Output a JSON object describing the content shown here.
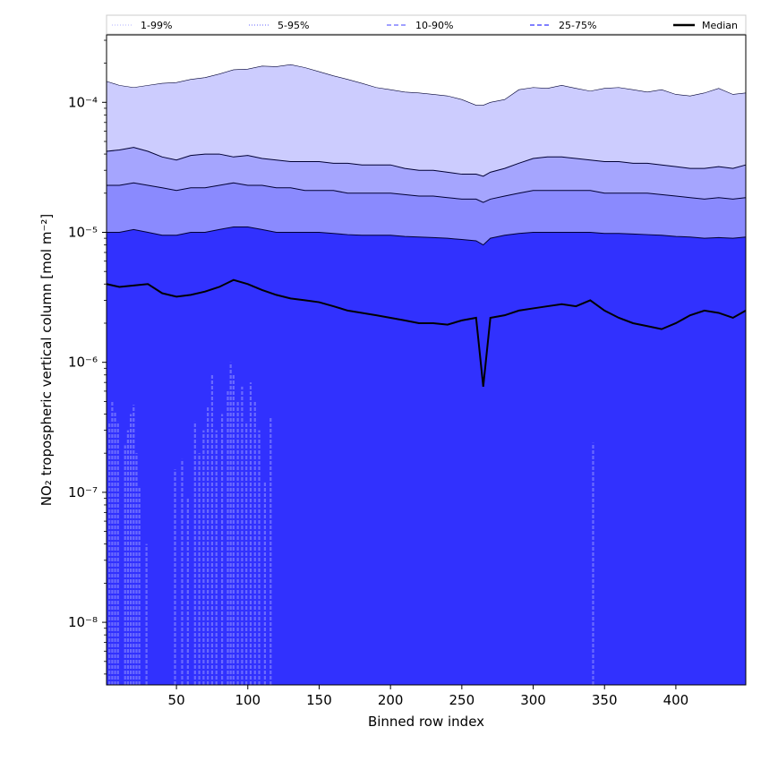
{
  "chart_data": {
    "type": "area",
    "title": "",
    "xlabel": "Binned row index",
    "ylabel": "NO₂ tropospheric vertical column [mol m⁻²]",
    "yscale": "log",
    "xlim": [
      1,
      449
    ],
    "ylim": [
      3.3e-09,
      0.00033
    ],
    "x_ticks": [
      50,
      100,
      150,
      200,
      250,
      300,
      350,
      400
    ],
    "y_ticks": [
      {
        "value": 1e-08,
        "label": "10⁻⁸"
      },
      {
        "value": 1e-07,
        "label": "10⁻⁷"
      },
      {
        "value": 1e-06,
        "label": "10⁻⁶"
      },
      {
        "value": 1e-05,
        "label": "10⁻⁵"
      },
      {
        "value": 0.0001,
        "label": "10⁻⁴"
      }
    ],
    "grid": false,
    "legend_position": "top",
    "legend": [
      {
        "label": "1-99%",
        "style": "dotted",
        "color": "#ccccff"
      },
      {
        "label": "5-95%",
        "style": "dotted",
        "color": "#9999ff"
      },
      {
        "label": "10-90%",
        "style": "dashed",
        "color": "#8080ff"
      },
      {
        "label": "25-75%",
        "style": "dashed",
        "color": "#5555ff"
      },
      {
        "label": "Median",
        "style": "solid",
        "color": "#000000"
      }
    ],
    "x": [
      1,
      10,
      20,
      30,
      40,
      50,
      60,
      70,
      80,
      90,
      100,
      110,
      120,
      130,
      140,
      150,
      160,
      170,
      180,
      190,
      200,
      210,
      220,
      230,
      240,
      250,
      260,
      265,
      270,
      280,
      290,
      300,
      310,
      320,
      330,
      340,
      350,
      360,
      370,
      380,
      390,
      400,
      410,
      420,
      430,
      440,
      449
    ],
    "series": [
      {
        "name": "1-99%",
        "role": "upper",
        "color": "#ccccff",
        "values": [
          0.000145,
          0.000135,
          0.00013,
          0.000135,
          0.00014,
          0.000142,
          0.00015,
          0.000155,
          0.000165,
          0.000178,
          0.00018,
          0.00019,
          0.000188,
          0.000195,
          0.000185,
          0.000172,
          0.00016,
          0.00015,
          0.00014,
          0.00013,
          0.000125,
          0.00012,
          0.000118,
          0.000115,
          0.000112,
          0.000105,
          9.5e-05,
          9.5e-05,
          0.0001,
          0.000105,
          0.000125,
          0.00013,
          0.000128,
          0.000135,
          0.000128,
          0.000122,
          0.000128,
          0.00013,
          0.000125,
          0.00012,
          0.000125,
          0.000115,
          0.000112,
          0.000118,
          0.000128,
          0.000115,
          0.000118
        ]
      },
      {
        "name": "5-95%",
        "role": "upper",
        "color": "#9999ff",
        "values": [
          4.2e-05,
          4.3e-05,
          4.5e-05,
          4.2e-05,
          3.8e-05,
          3.6e-05,
          3.9e-05,
          4e-05,
          4e-05,
          3.8e-05,
          3.9e-05,
          3.7e-05,
          3.6e-05,
          3.5e-05,
          3.5e-05,
          3.5e-05,
          3.4e-05,
          3.4e-05,
          3.3e-05,
          3.3e-05,
          3.3e-05,
          3.1e-05,
          3e-05,
          3e-05,
          2.9e-05,
          2.8e-05,
          2.8e-05,
          2.7e-05,
          2.9e-05,
          3.1e-05,
          3.4e-05,
          3.7e-05,
          3.8e-05,
          3.8e-05,
          3.7e-05,
          3.6e-05,
          3.5e-05,
          3.5e-05,
          3.4e-05,
          3.4e-05,
          3.3e-05,
          3.2e-05,
          3.1e-05,
          3.1e-05,
          3.2e-05,
          3.1e-05,
          3.3e-05
        ]
      },
      {
        "name": "10-90%",
        "role": "upper",
        "color": "#8080ff",
        "values": [
          2.3e-05,
          2.3e-05,
          2.4e-05,
          2.3e-05,
          2.2e-05,
          2.1e-05,
          2.2e-05,
          2.2e-05,
          2.3e-05,
          2.4e-05,
          2.3e-05,
          2.3e-05,
          2.2e-05,
          2.2e-05,
          2.1e-05,
          2.1e-05,
          2.1e-05,
          2e-05,
          2e-05,
          2e-05,
          2e-05,
          1.95e-05,
          1.9e-05,
          1.9e-05,
          1.85e-05,
          1.8e-05,
          1.8e-05,
          1.7e-05,
          1.8e-05,
          1.9e-05,
          2e-05,
          2.1e-05,
          2.1e-05,
          2.1e-05,
          2.1e-05,
          2.1e-05,
          2e-05,
          2e-05,
          2e-05,
          2e-05,
          1.95e-05,
          1.9e-05,
          1.85e-05,
          1.8e-05,
          1.85e-05,
          1.8e-05,
          1.85e-05
        ]
      },
      {
        "name": "25-75%",
        "role": "upper",
        "color": "#5555ff",
        "values": [
          1e-05,
          1e-05,
          1.05e-05,
          1e-05,
          9.5e-06,
          9.5e-06,
          1e-05,
          1e-05,
          1.05e-05,
          1.1e-05,
          1.1e-05,
          1.05e-05,
          1e-05,
          1e-05,
          1e-05,
          1e-05,
          9.8e-06,
          9.6e-06,
          9.5e-06,
          9.5e-06,
          9.5e-06,
          9.3e-06,
          9.2e-06,
          9.1e-06,
          9e-06,
          8.8e-06,
          8.6e-06,
          8e-06,
          9e-06,
          9.5e-06,
          9.8e-06,
          1e-05,
          1e-05,
          1e-05,
          1e-05,
          1e-05,
          9.8e-06,
          9.8e-06,
          9.7e-06,
          9.6e-06,
          9.5e-06,
          9.3e-06,
          9.2e-06,
          9e-06,
          9.1e-06,
          9e-06,
          9.2e-06
        ]
      },
      {
        "name": "Median",
        "role": "line",
        "color": "#000000",
        "values": [
          4e-06,
          3.8e-06,
          3.9e-06,
          4e-06,
          3.4e-06,
          3.2e-06,
          3.3e-06,
          3.5e-06,
          3.8e-06,
          4.3e-06,
          4e-06,
          3.6e-06,
          3.3e-06,
          3.1e-06,
          3e-06,
          2.9e-06,
          2.7e-06,
          2.5e-06,
          2.4e-06,
          2.3e-06,
          2.2e-06,
          2.1e-06,
          2e-06,
          2e-06,
          1.95e-06,
          2.1e-06,
          2.2e-06,
          6.5e-07,
          2.2e-06,
          2.3e-06,
          2.5e-06,
          2.6e-06,
          2.7e-06,
          2.8e-06,
          2.7e-06,
          3e-06,
          2.5e-06,
          2.2e-06,
          2e-06,
          1.9e-06,
          1.8e-06,
          2e-06,
          2.3e-06,
          2.5e-06,
          2.4e-06,
          2.2e-06,
          2.5e-06
        ]
      }
    ],
    "lower_spikes": [
      {
        "x": 3,
        "y": 3.5e-07
      },
      {
        "x": 5,
        "y": 5e-07
      },
      {
        "x": 7,
        "y": 4.2e-07
      },
      {
        "x": 9,
        "y": 3.5e-07
      },
      {
        "x": 14,
        "y": 2.3e-07
      },
      {
        "x": 16,
        "y": 3e-07
      },
      {
        "x": 18,
        "y": 4e-07
      },
      {
        "x": 20,
        "y": 4.7e-07
      },
      {
        "x": 22,
        "y": 2e-07
      },
      {
        "x": 24,
        "y": 1.1e-07
      },
      {
        "x": 29,
        "y": 4e-08
      },
      {
        "x": 49,
        "y": 1.5e-07
      },
      {
        "x": 54,
        "y": 1.8e-07
      },
      {
        "x": 58,
        "y": 9e-08
      },
      {
        "x": 63,
        "y": 3.5e-07
      },
      {
        "x": 66,
        "y": 2e-07
      },
      {
        "x": 69,
        "y": 3e-07
      },
      {
        "x": 72,
        "y": 4.5e-07
      },
      {
        "x": 75,
        "y": 8e-07
      },
      {
        "x": 78,
        "y": 3e-07
      },
      {
        "x": 82,
        "y": 4e-07
      },
      {
        "x": 86,
        "y": 6e-07
      },
      {
        "x": 88,
        "y": 1e-06
      },
      {
        "x": 90,
        "y": 8e-07
      },
      {
        "x": 93,
        "y": 5e-07
      },
      {
        "x": 96,
        "y": 6.5e-07
      },
      {
        "x": 99,
        "y": 3.5e-07
      },
      {
        "x": 102,
        "y": 7e-07
      },
      {
        "x": 105,
        "y": 5e-07
      },
      {
        "x": 108,
        "y": 3e-07
      },
      {
        "x": 112,
        "y": 1.2e-07
      },
      {
        "x": 116,
        "y": 3.8e-07
      },
      {
        "x": 342,
        "y": 2.4e-07
      }
    ],
    "fill_colors": {
      "base": "#2a2afe",
      "band_25_75": "#5a5afe",
      "band_10_90": "#8a8afe",
      "band_5_95": "#a5a5fe",
      "band_1_99": "#ccccfe"
    }
  }
}
